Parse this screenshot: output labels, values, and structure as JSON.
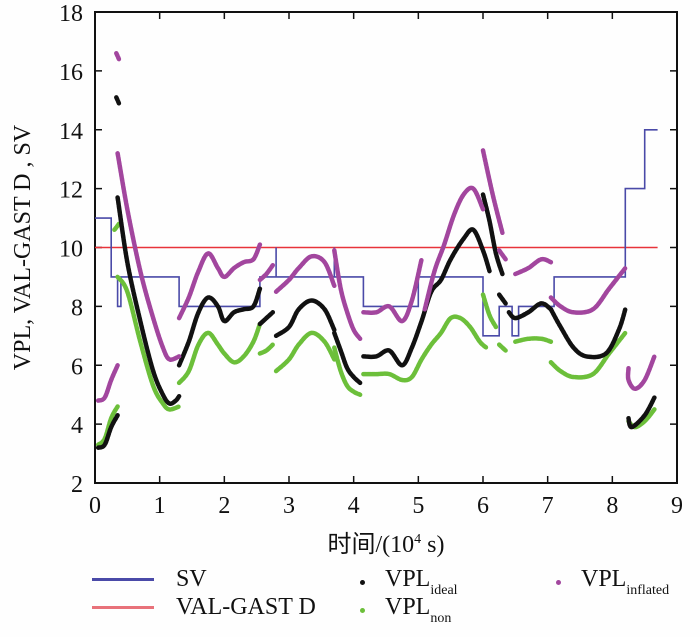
{
  "chart_data": {
    "type": "line",
    "title": "",
    "xlabel": "时间/(10⁴ s)",
    "xlabel_parts": {
      "prefix": "时间/(10",
      "sup": "4",
      "suffix": " s)"
    },
    "ylabel": "VPL, VAL-GAST D , SV",
    "xlim": [
      0,
      9
    ],
    "ylim": [
      2,
      18
    ],
    "xticks": [
      0,
      1,
      2,
      3,
      4,
      5,
      6,
      7,
      8,
      9
    ],
    "yticks": [
      2,
      4,
      6,
      8,
      10,
      12,
      14,
      16,
      18
    ],
    "grid": false,
    "legend_position": "bottom",
    "colors": {
      "sv": "#4a4aa8",
      "val": "#e8333a",
      "ideal": "#111111",
      "non": "#6cbf3a",
      "inflated": "#a2469e"
    },
    "series": [
      {
        "key": "sv",
        "name": "SV",
        "style": "step",
        "points": [
          [
            0,
            11
          ],
          [
            0.25,
            11
          ],
          [
            0.25,
            9
          ],
          [
            0.35,
            9
          ],
          [
            0.35,
            8
          ],
          [
            0.4,
            8
          ],
          [
            0.4,
            9
          ],
          [
            1.3,
            9
          ],
          [
            1.3,
            8
          ],
          [
            2.55,
            8
          ],
          [
            2.55,
            9
          ],
          [
            2.8,
            9
          ],
          [
            2.8,
            10
          ],
          [
            2.8,
            9
          ],
          [
            3.7,
            9
          ],
          [
            3.7,
            10
          ],
          [
            3.7,
            9
          ],
          [
            4.15,
            9
          ],
          [
            4.15,
            8
          ],
          [
            5.0,
            8
          ],
          [
            5.0,
            9
          ],
          [
            6.0,
            9
          ],
          [
            6.0,
            7
          ],
          [
            6.25,
            7
          ],
          [
            6.25,
            8
          ],
          [
            6.45,
            8
          ],
          [
            6.45,
            7
          ],
          [
            6.55,
            7
          ],
          [
            6.55,
            8
          ],
          [
            7.1,
            8
          ],
          [
            7.1,
            9
          ],
          [
            8.2,
            9
          ],
          [
            8.2,
            12
          ],
          [
            8.5,
            12
          ],
          [
            8.5,
            14
          ],
          [
            8.7,
            14
          ]
        ]
      },
      {
        "key": "val",
        "name": "VAL-GAST D",
        "style": "line",
        "points": [
          [
            0,
            10
          ],
          [
            8.7,
            10
          ]
        ]
      },
      {
        "key": "ideal",
        "name": "VPL",
        "sub": "ideal",
        "style": "dots",
        "segments": [
          [
            [
              0.05,
              3.2
            ],
            [
              0.15,
              3.3
            ],
            [
              0.25,
              3.9
            ],
            [
              0.35,
              4.3
            ]
          ],
          [
            [
              0.33,
              15.1
            ],
            [
              0.37,
              14.9
            ]
          ],
          [
            [
              0.35,
              11.7
            ],
            [
              0.5,
              9.5
            ],
            [
              0.7,
              7.5
            ],
            [
              0.9,
              5.8
            ],
            [
              1.05,
              5.0
            ],
            [
              1.15,
              4.7
            ],
            [
              1.25,
              4.8
            ],
            [
              1.3,
              4.95
            ]
          ],
          [
            [
              1.3,
              6.0
            ],
            [
              1.45,
              6.8
            ],
            [
              1.6,
              7.8
            ],
            [
              1.75,
              8.3
            ],
            [
              1.9,
              8.0
            ],
            [
              2.0,
              7.5
            ],
            [
              2.15,
              7.8
            ],
            [
              2.3,
              7.9
            ],
            [
              2.45,
              8.0
            ],
            [
              2.55,
              8.6
            ]
          ],
          [
            [
              2.55,
              7.4
            ],
            [
              2.65,
              7.6
            ],
            [
              2.75,
              7.8
            ]
          ],
          [
            [
              2.8,
              7.0
            ],
            [
              3.0,
              7.3
            ],
            [
              3.15,
              7.9
            ],
            [
              3.35,
              8.2
            ],
            [
              3.55,
              7.9
            ],
            [
              3.7,
              7.2
            ]
          ],
          [
            [
              3.7,
              7.1
            ],
            [
              3.8,
              6.5
            ],
            [
              3.9,
              5.9
            ],
            [
              4.0,
              5.6
            ],
            [
              4.1,
              5.4
            ]
          ],
          [
            [
              4.15,
              6.3
            ],
            [
              4.35,
              6.3
            ],
            [
              4.55,
              6.5
            ],
            [
              4.75,
              6.0
            ],
            [
              4.9,
              6.6
            ],
            [
              5.05,
              7.5
            ],
            [
              5.2,
              8.5
            ],
            [
              5.35,
              8.9
            ],
            [
              5.5,
              9.6
            ],
            [
              5.7,
              10.3
            ],
            [
              5.85,
              10.6
            ],
            [
              6.0,
              9.9
            ],
            [
              6.1,
              9.2
            ]
          ],
          [
            [
              6.0,
              11.8
            ],
            [
              6.1,
              10.9
            ],
            [
              6.2,
              9.8
            ],
            [
              6.3,
              9.1
            ]
          ],
          [
            [
              6.25,
              8.4
            ],
            [
              6.35,
              8.1
            ]
          ],
          [
            [
              6.4,
              7.8
            ],
            [
              6.5,
              7.6
            ],
            [
              6.7,
              7.8
            ],
            [
              6.9,
              8.1
            ],
            [
              7.05,
              7.9
            ]
          ],
          [
            [
              7.05,
              7.9
            ],
            [
              7.2,
              7.3
            ],
            [
              7.4,
              6.6
            ],
            [
              7.6,
              6.3
            ],
            [
              7.9,
              6.4
            ],
            [
              8.1,
              7.2
            ],
            [
              8.2,
              7.9
            ]
          ],
          [
            [
              8.25,
              4.2
            ],
            [
              8.3,
              3.9
            ],
            [
              8.5,
              4.3
            ],
            [
              8.65,
              4.9
            ]
          ]
        ]
      },
      {
        "key": "non",
        "name": "VPL",
        "sub": "non",
        "style": "dots",
        "segments": [
          [
            [
              0.05,
              3.3
            ],
            [
              0.15,
              3.5
            ],
            [
              0.25,
              4.2
            ],
            [
              0.35,
              4.6
            ]
          ],
          [
            [
              0.3,
              10.6
            ],
            [
              0.37,
              10.8
            ]
          ],
          [
            [
              0.35,
              9.0
            ],
            [
              0.5,
              8.5
            ],
            [
              0.7,
              6.8
            ],
            [
              0.9,
              5.3
            ],
            [
              1.05,
              4.7
            ],
            [
              1.15,
              4.5
            ],
            [
              1.3,
              4.6
            ]
          ],
          [
            [
              1.3,
              5.4
            ],
            [
              1.45,
              5.8
            ],
            [
              1.6,
              6.7
            ],
            [
              1.75,
              7.1
            ],
            [
              1.9,
              6.7
            ],
            [
              2.0,
              6.4
            ],
            [
              2.15,
              6.1
            ],
            [
              2.3,
              6.3
            ],
            [
              2.45,
              6.8
            ],
            [
              2.55,
              7.4
            ]
          ],
          [
            [
              2.55,
              6.4
            ],
            [
              2.65,
              6.5
            ],
            [
              2.75,
              6.7
            ]
          ],
          [
            [
              2.8,
              5.8
            ],
            [
              3.0,
              6.2
            ],
            [
              3.15,
              6.7
            ],
            [
              3.35,
              7.1
            ],
            [
              3.55,
              6.8
            ],
            [
              3.7,
              6.2
            ]
          ],
          [
            [
              3.7,
              6.6
            ],
            [
              3.8,
              5.8
            ],
            [
              3.9,
              5.3
            ],
            [
              4.0,
              5.1
            ],
            [
              4.1,
              5.0
            ]
          ],
          [
            [
              4.15,
              5.7
            ],
            [
              4.35,
              5.7
            ],
            [
              4.55,
              5.7
            ],
            [
              4.75,
              5.5
            ],
            [
              4.9,
              5.6
            ],
            [
              5.05,
              6.2
            ],
            [
              5.2,
              6.7
            ],
            [
              5.35,
              7.1
            ],
            [
              5.5,
              7.6
            ],
            [
              5.65,
              7.6
            ],
            [
              5.8,
              7.3
            ],
            [
              5.95,
              6.8
            ],
            [
              6.05,
              6.6
            ]
          ],
          [
            [
              6.0,
              8.4
            ],
            [
              6.1,
              7.7
            ],
            [
              6.2,
              7.3
            ]
          ],
          [
            [
              6.25,
              6.7
            ],
            [
              6.35,
              6.5
            ]
          ],
          [
            [
              6.5,
              6.8
            ],
            [
              6.7,
              6.9
            ],
            [
              6.9,
              6.9
            ],
            [
              7.05,
              6.8
            ]
          ],
          [
            [
              7.05,
              6.1
            ],
            [
              7.2,
              5.8
            ],
            [
              7.4,
              5.6
            ],
            [
              7.7,
              5.7
            ],
            [
              7.95,
              6.4
            ],
            [
              8.2,
              7.1
            ]
          ],
          [
            [
              8.25,
              4.1
            ],
            [
              8.35,
              3.9
            ],
            [
              8.5,
              4.1
            ],
            [
              8.65,
              4.5
            ]
          ]
        ]
      },
      {
        "key": "inflated",
        "name": "VPL",
        "sub": "inflated",
        "style": "dots",
        "segments": [
          [
            [
              0.05,
              4.8
            ],
            [
              0.15,
              4.9
            ],
            [
              0.25,
              5.5
            ],
            [
              0.35,
              6.0
            ]
          ],
          [
            [
              0.33,
              16.6
            ],
            [
              0.37,
              16.4
            ]
          ],
          [
            [
              0.35,
              13.2
            ],
            [
              0.5,
              11.3
            ],
            [
              0.7,
              9.2
            ],
            [
              0.9,
              7.6
            ],
            [
              1.05,
              6.6
            ],
            [
              1.15,
              6.2
            ],
            [
              1.3,
              6.3
            ]
          ],
          [
            [
              1.3,
              7.6
            ],
            [
              1.45,
              8.3
            ],
            [
              1.6,
              9.2
            ],
            [
              1.75,
              9.8
            ],
            [
              1.9,
              9.3
            ],
            [
              2.0,
              9.0
            ],
            [
              2.15,
              9.3
            ],
            [
              2.3,
              9.5
            ],
            [
              2.45,
              9.6
            ],
            [
              2.55,
              10.1
            ]
          ],
          [
            [
              2.55,
              8.9
            ],
            [
              2.65,
              9.1
            ],
            [
              2.75,
              9.4
            ]
          ],
          [
            [
              2.8,
              8.5
            ],
            [
              3.0,
              8.9
            ],
            [
              3.15,
              9.3
            ],
            [
              3.35,
              9.7
            ],
            [
              3.55,
              9.5
            ],
            [
              3.7,
              8.7
            ]
          ],
          [
            [
              3.7,
              9.9
            ],
            [
              3.8,
              8.6
            ],
            [
              3.9,
              7.8
            ],
            [
              4.0,
              7.2
            ],
            [
              4.1,
              6.9
            ]
          ],
          [
            [
              4.15,
              7.8
            ],
            [
              4.35,
              7.8
            ],
            [
              4.55,
              8.0
            ],
            [
              4.75,
              7.5
            ],
            [
              4.9,
              8.2
            ],
            [
              5.05,
              9.6
            ]
          ],
          [
            [
              5.1,
              7.9
            ],
            [
              5.25,
              9.2
            ],
            [
              5.4,
              10.1
            ],
            [
              5.55,
              11.1
            ],
            [
              5.7,
              11.8
            ],
            [
              5.85,
              12.0
            ],
            [
              6.0,
              11.3
            ]
          ],
          [
            [
              6.0,
              13.3
            ],
            [
              6.15,
              11.8
            ],
            [
              6.3,
              10.5
            ]
          ],
          [
            [
              6.25,
              9.9
            ],
            [
              6.35,
              9.6
            ]
          ],
          [
            [
              6.5,
              9.1
            ],
            [
              6.7,
              9.3
            ],
            [
              6.9,
              9.6
            ],
            [
              7.05,
              9.5
            ]
          ],
          [
            [
              7.05,
              8.3
            ],
            [
              7.2,
              8.0
            ],
            [
              7.4,
              7.8
            ],
            [
              7.7,
              7.9
            ],
            [
              7.95,
              8.6
            ],
            [
              8.2,
              9.3
            ]
          ],
          [
            [
              8.25,
              5.9
            ],
            [
              8.25,
              5.5
            ],
            [
              8.35,
              5.2
            ],
            [
              8.5,
              5.5
            ],
            [
              8.65,
              6.3
            ]
          ]
        ]
      }
    ]
  },
  "legend": {
    "sv": "SV",
    "val": "VAL-GAST D",
    "ideal_main": "VPL",
    "ideal_sub": "ideal",
    "non_main": "VPL",
    "non_sub": "non",
    "inflated_main": "VPL",
    "inflated_sub": "inflated"
  }
}
